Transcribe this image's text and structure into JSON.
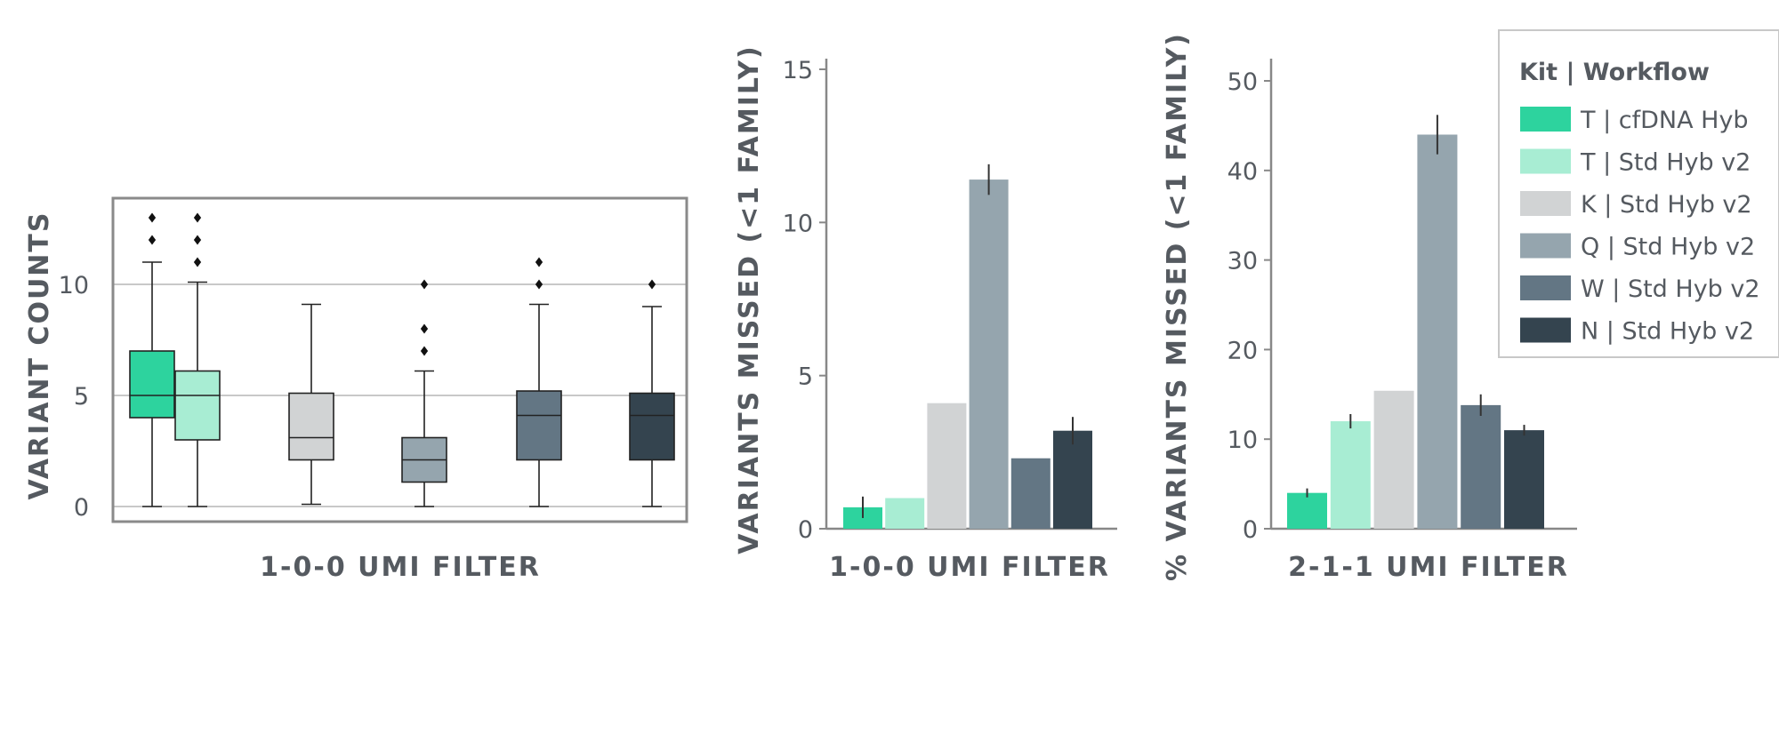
{
  "colors": {
    "T | cfDNA Hyb": "#2dd39e",
    "T | Std Hyb v2": "#a8edd3",
    "K | Std Hyb v2": "#d1d3d4",
    "Q | Std Hyb v2": "#95a5ae",
    "W | Std Hyb v2": "#637684",
    "N | Std Hyb v2": "#34444f",
    "axis": "#888888",
    "text": "#555a60"
  },
  "legend": {
    "title": "Kit | Workflow",
    "placement": "top-right",
    "items": [
      "T | cfDNA Hyb",
      "T | Std Hyb v2",
      "K | Std Hyb v2",
      "Q | Std Hyb v2",
      "W | Std Hyb v2",
      "N | Std Hyb v2"
    ]
  },
  "chart_data": [
    {
      "type": "box",
      "title": "",
      "xlabel": "1-0-0 UMI FILTER",
      "ylabel": "VARIANT COUNTS",
      "ylim": [
        -0.7,
        14
      ],
      "yticks": [
        0,
        5,
        10
      ],
      "grid": true,
      "boxes": [
        {
          "name": "T | cfDNA Hyb",
          "whisker_low": 0,
          "q1": 4,
          "median": 5,
          "q3": 7,
          "whisker_high": 11,
          "outliers": [
            12,
            13
          ]
        },
        {
          "name": "T | Std Hyb v2",
          "whisker_low": 0,
          "q1": 3,
          "median": 5,
          "q3": 6.1,
          "whisker_high": 10.1,
          "outliers": [
            11,
            12,
            13
          ]
        },
        {
          "name": "K | Std Hyb v2",
          "whisker_low": 0.1,
          "q1": 2.1,
          "median": 3.1,
          "q3": 5.1,
          "whisker_high": 9.1,
          "outliers": []
        },
        {
          "name": "Q | Std Hyb v2",
          "whisker_low": 0,
          "q1": 1.1,
          "median": 2.1,
          "q3": 3.1,
          "whisker_high": 6.1,
          "outliers": [
            7,
            8,
            10
          ]
        },
        {
          "name": "W | Std Hyb v2",
          "whisker_low": 0,
          "q1": 2.1,
          "median": 4.1,
          "q3": 5.2,
          "whisker_high": 9.1,
          "outliers": [
            10,
            11
          ]
        },
        {
          "name": "N | Std Hyb v2",
          "whisker_low": 0,
          "q1": 2.1,
          "median": 4.1,
          "q3": 5.1,
          "whisker_high": 9,
          "outliers": [
            10
          ]
        }
      ]
    },
    {
      "type": "bar",
      "title": "",
      "xlabel": "1-0-0 UMI FILTER",
      "ylabel": "VARIANTS MISSED (<1 FAMILY)",
      "ylim": [
        0,
        15.3
      ],
      "yticks": [
        0,
        5,
        10,
        15
      ],
      "categories": [
        "T | cfDNA Hyb",
        "T | Std Hyb v2",
        "K | Std Hyb v2",
        "Q | Std Hyb v2",
        "W | Std Hyb v2",
        "N | Std Hyb v2"
      ],
      "values": [
        0.7,
        1.0,
        4.1,
        11.4,
        2.3,
        3.2
      ],
      "errors": [
        0.35,
        0,
        0,
        0.5,
        0,
        0.45
      ]
    },
    {
      "type": "bar",
      "title": "",
      "xlabel": "2-1-1 UMI FILTER",
      "ylabel": "% VARIANTS MISSED (<1 FAMILY)",
      "ylim": [
        0,
        53
      ],
      "yticks": [
        0,
        10,
        20,
        30,
        40,
        50
      ],
      "categories": [
        "T | cfDNA Hyb",
        "T | Std Hyb v2",
        "K | Std Hyb v2",
        "Q | Std Hyb v2",
        "W | Std Hyb v2",
        "N | Std Hyb v2"
      ],
      "values": [
        4,
        12,
        15.4,
        44,
        13.8,
        11
      ],
      "errors": [
        0.5,
        0.8,
        0,
        2.2,
        1.2,
        0.6
      ]
    }
  ]
}
